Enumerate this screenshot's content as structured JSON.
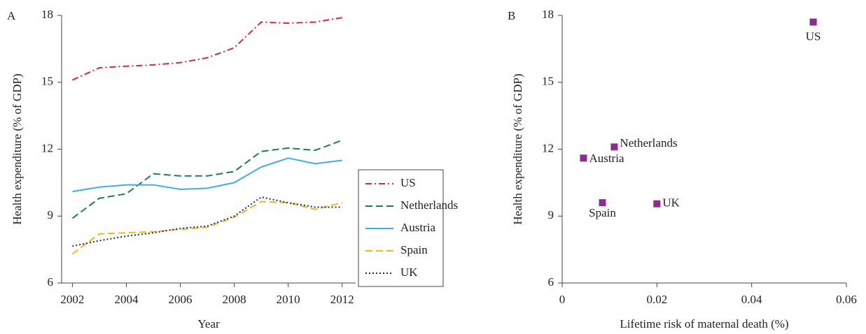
{
  "chart_data": [
    {
      "type": "line",
      "panel": "A",
      "xlabel": "Year",
      "ylabel": "Health expenditure (% of GDP)",
      "x": [
        2002,
        2003,
        2004,
        2005,
        2006,
        2007,
        2008,
        2009,
        2010,
        2011,
        2012
      ],
      "xlim": [
        2001.6,
        2012.5
      ],
      "xticks": [
        2002,
        2004,
        2006,
        2008,
        2010,
        2012
      ],
      "ylim": [
        6,
        18
      ],
      "yticks": [
        6,
        9,
        12,
        15,
        18
      ],
      "series": [
        {
          "name": "US",
          "color": "#d7263d",
          "style": "dashdot",
          "values": [
            15.1,
            15.65,
            15.72,
            15.78,
            15.88,
            16.1,
            16.55,
            17.7,
            17.65,
            17.7,
            17.9
          ]
        },
        {
          "name": "Netherlands",
          "color": "#1f7a5c",
          "style": "dashed",
          "values": [
            8.9,
            9.8,
            10.0,
            10.9,
            10.8,
            10.8,
            11.0,
            11.9,
            12.05,
            11.95,
            12.4
          ]
        },
        {
          "name": "Austria",
          "color": "#3db0e0",
          "style": "solid",
          "values": [
            10.1,
            10.3,
            10.4,
            10.4,
            10.2,
            10.25,
            10.5,
            11.2,
            11.6,
            11.35,
            11.5
          ]
        },
        {
          "name": "Spain",
          "color": "#f2b818",
          "style": "dashed",
          "values": [
            7.3,
            8.2,
            8.25,
            8.3,
            8.4,
            8.5,
            8.95,
            9.65,
            9.6,
            9.3,
            9.6
          ]
        },
        {
          "name": "UK",
          "color": "#1a2a6c",
          "style": "dotted",
          "values": [
            7.65,
            7.9,
            8.1,
            8.25,
            8.45,
            8.55,
            9.0,
            9.85,
            9.6,
            9.4,
            9.4
          ]
        }
      ]
    },
    {
      "type": "scatter",
      "panel": "B",
      "xlabel": "Lifetime risk of maternal death (%)",
      "ylabel": "Health expenditure (% of GDP)",
      "color": "#8e2b8e",
      "labels": [
        "US",
        "Netherlands",
        "Austria",
        "Spain",
        "UK"
      ],
      "x": [
        0.053,
        0.011,
        0.0045,
        0.0085,
        0.02
      ],
      "values": [
        17.7,
        12.1,
        11.6,
        9.6,
        9.55
      ],
      "xlim": [
        0,
        0.06
      ],
      "xticks": [
        0,
        0.02,
        0.04,
        0.06
      ],
      "ylim": [
        6,
        18
      ],
      "yticks": [
        6,
        9,
        12,
        15,
        18
      ]
    }
  ]
}
